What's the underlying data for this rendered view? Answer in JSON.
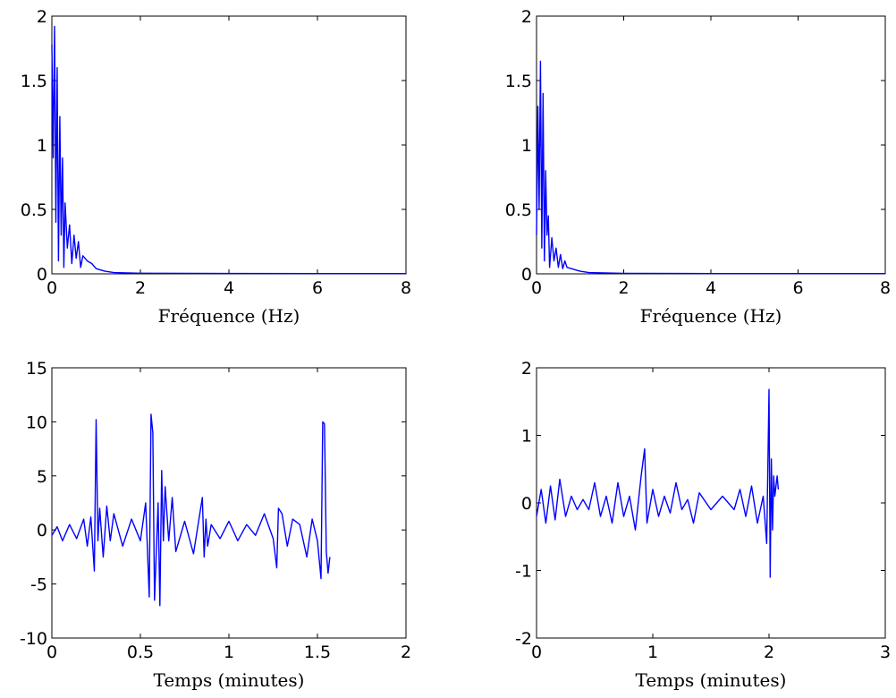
{
  "chart_data": [
    {
      "type": "line",
      "xlabel": "Fréquence (Hz)",
      "ylabel": "",
      "xlim": [
        0,
        8
      ],
      "ylim": [
        0,
        2
      ],
      "xticks": [
        0,
        2,
        4,
        6,
        8
      ],
      "yticks": [
        0,
        0.5,
        1,
        1.5,
        2
      ],
      "xtick_labels": [
        "0",
        "2",
        "4",
        "6",
        "8"
      ],
      "ytick_labels": [
        "0",
        "0.5",
        "1",
        "1.5",
        "2"
      ],
      "color": "#0000ff",
      "grid": false,
      "series": [
        {
          "x": [
            0,
            0.03,
            0.06,
            0.09,
            0.12,
            0.15,
            0.18,
            0.21,
            0.24,
            0.27,
            0.3,
            0.35,
            0.4,
            0.45,
            0.5,
            0.55,
            0.6,
            0.65,
            0.7,
            0.8,
            0.9,
            1.0,
            1.1,
            1.2,
            1.4,
            2,
            4,
            6,
            8
          ],
          "y": [
            1.78,
            0.9,
            1.92,
            0.4,
            1.6,
            0.1,
            1.22,
            0.3,
            0.9,
            0.05,
            0.55,
            0.2,
            0.38,
            0.08,
            0.3,
            0.12,
            0.25,
            0.05,
            0.14,
            0.1,
            0.08,
            0.04,
            0.03,
            0.02,
            0.01,
            0.005,
            0.003,
            0.002,
            0.002
          ]
        }
      ]
    },
    {
      "type": "line",
      "xlabel": "Fréquence (Hz)",
      "ylabel": "",
      "xlim": [
        0,
        8
      ],
      "ylim": [
        0,
        2
      ],
      "xticks": [
        0,
        2,
        4,
        6,
        8
      ],
      "yticks": [
        0,
        0.5,
        1,
        1.5,
        2
      ],
      "xtick_labels": [
        "0",
        "2",
        "4",
        "6",
        "8"
      ],
      "ytick_labels": [
        "0",
        "0.5",
        "1",
        "1.5",
        "2"
      ],
      "color": "#0000ff",
      "grid": false,
      "series": [
        {
          "x": [
            0,
            0.03,
            0.06,
            0.09,
            0.12,
            0.15,
            0.18,
            0.21,
            0.24,
            0.27,
            0.3,
            0.35,
            0.4,
            0.45,
            0.5,
            0.55,
            0.6,
            0.65,
            0.7,
            0.8,
            0.9,
            1.0,
            1.2,
            2,
            4,
            6,
            8
          ],
          "y": [
            0.3,
            1.3,
            0.5,
            1.65,
            0.2,
            1.4,
            0.1,
            0.8,
            0.3,
            0.45,
            0.05,
            0.28,
            0.1,
            0.2,
            0.05,
            0.15,
            0.04,
            0.1,
            0.05,
            0.04,
            0.03,
            0.02,
            0.01,
            0.004,
            0.002,
            0.002,
            0.002
          ]
        }
      ]
    },
    {
      "type": "line",
      "xlabel": "Temps (minutes)",
      "ylabel": "",
      "xlim": [
        0,
        2
      ],
      "ylim": [
        -10,
        15
      ],
      "xticks": [
        0,
        0.5,
        1,
        1.5,
        2
      ],
      "yticks": [
        -10,
        -5,
        0,
        5,
        10,
        15
      ],
      "xtick_labels": [
        "0",
        "0.5",
        "1",
        "1.5",
        "2"
      ],
      "ytick_labels": [
        "-10",
        "-5",
        "0",
        "5",
        "10",
        "15"
      ],
      "color": "#0000ff",
      "grid": false,
      "series": [
        {
          "x": [
            0,
            0.03,
            0.06,
            0.1,
            0.14,
            0.18,
            0.2,
            0.22,
            0.24,
            0.25,
            0.26,
            0.27,
            0.29,
            0.31,
            0.33,
            0.35,
            0.4,
            0.45,
            0.5,
            0.53,
            0.55,
            0.56,
            0.57,
            0.58,
            0.6,
            0.61,
            0.62,
            0.63,
            0.64,
            0.66,
            0.68,
            0.7,
            0.75,
            0.8,
            0.85,
            0.86,
            0.87,
            0.88,
            0.9,
            0.95,
            1.0,
            1.05,
            1.1,
            1.15,
            1.2,
            1.25,
            1.27,
            1.28,
            1.3,
            1.33,
            1.36,
            1.4,
            1.44,
            1.47,
            1.5,
            1.52,
            1.53,
            1.54,
            1.55,
            1.56,
            1.57
          ],
          "y": [
            -0.5,
            0.3,
            -1.0,
            0.5,
            -0.8,
            1.0,
            -1.5,
            1.2,
            -3.8,
            10.2,
            -1.0,
            2.0,
            -2.5,
            2.2,
            -1.0,
            1.5,
            -1.5,
            1.0,
            -1.0,
            2.5,
            -6.2,
            10.7,
            9.0,
            -6.5,
            2.5,
            -7.0,
            5.5,
            -1.0,
            4.0,
            -1.0,
            3.0,
            -2.0,
            0.8,
            -2.2,
            3.0,
            -2.5,
            1.0,
            -1.5,
            0.5,
            -0.8,
            0.8,
            -1.0,
            0.5,
            -0.5,
            1.5,
            -0.8,
            -3.5,
            2.0,
            1.5,
            -1.5,
            1.0,
            0.5,
            -2.5,
            1.0,
            -1.0,
            -4.5,
            10.0,
            9.8,
            -2.0,
            -4.0,
            -2.5
          ]
        }
      ]
    },
    {
      "type": "line",
      "xlabel": "Temps (minutes)",
      "ylabel": "",
      "xlim": [
        0,
        3
      ],
      "ylim": [
        -2,
        2
      ],
      "xticks": [
        0,
        1,
        2,
        3
      ],
      "yticks": [
        -2,
        -1,
        0,
        1,
        2
      ],
      "xtick_labels": [
        "0",
        "1",
        "2",
        "3"
      ],
      "ytick_labels": [
        "-2",
        "-1",
        "0",
        "1",
        "2"
      ],
      "color": "#0000ff",
      "grid": false,
      "series": [
        {
          "x": [
            0,
            0.04,
            0.08,
            0.12,
            0.16,
            0.2,
            0.25,
            0.3,
            0.35,
            0.4,
            0.45,
            0.5,
            0.55,
            0.6,
            0.65,
            0.7,
            0.75,
            0.8,
            0.85,
            0.9,
            0.93,
            0.95,
            1.0,
            1.05,
            1.1,
            1.15,
            1.2,
            1.25,
            1.3,
            1.35,
            1.4,
            1.5,
            1.6,
            1.7,
            1.75,
            1.8,
            1.85,
            1.9,
            1.95,
            1.98,
            2.0,
            2.01,
            2.02,
            2.03,
            2.04,
            2.05,
            2.07,
            2.08
          ],
          "y": [
            -0.2,
            0.2,
            -0.3,
            0.25,
            -0.25,
            0.35,
            -0.2,
            0.1,
            -0.1,
            0.05,
            -0.1,
            0.3,
            -0.2,
            0.1,
            -0.3,
            0.3,
            -0.2,
            0.1,
            -0.4,
            0.4,
            0.8,
            -0.3,
            0.2,
            -0.2,
            0.1,
            -0.15,
            0.3,
            -0.1,
            0.05,
            -0.3,
            0.15,
            -0.1,
            0.1,
            -0.1,
            0.2,
            -0.2,
            0.25,
            -0.3,
            0.1,
            -0.6,
            1.68,
            -1.1,
            0.65,
            -0.4,
            0.4,
            0.1,
            0.4,
            0.2
          ]
        }
      ]
    }
  ]
}
